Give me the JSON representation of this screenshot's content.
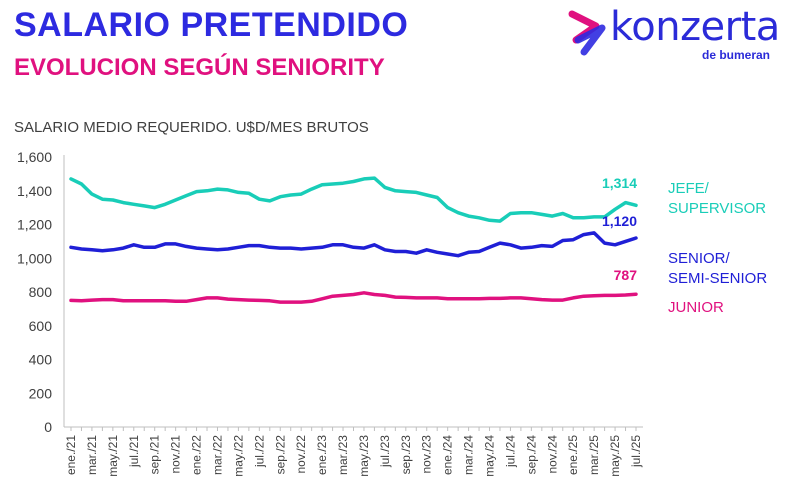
{
  "header": {
    "title": "SALARIO PRETENDIDO",
    "subtitle": "EVOLUCION SEGÚN SENIORITY"
  },
  "logo": {
    "name": "konzerta",
    "tagline": "de bumeran",
    "mark_colors": [
      "#e0117f",
      "#2d2ae0"
    ]
  },
  "chart_data": {
    "type": "line",
    "title": "SALARIO MEDIO REQUERIDO. U$D/MES BRUTOS",
    "xlabel": "",
    "ylabel": "",
    "ylim": [
      0,
      1600
    ],
    "yticks": [
      0,
      200,
      400,
      600,
      800,
      1000,
      1200,
      1400,
      1600
    ],
    "ytick_labels": [
      "0",
      "200",
      "400",
      "600",
      "800",
      "1,000",
      "1,200",
      "1,400",
      "1,600"
    ],
    "grid": false,
    "legend": "right",
    "x": [
      "ene./21",
      "feb./21",
      "mar./21",
      "abr./21",
      "may./21",
      "jun./21",
      "jul./21",
      "ago./21",
      "sep./21",
      "oct./21",
      "nov./21",
      "dic./21",
      "ene./22",
      "feb./22",
      "mar./22",
      "abr./22",
      "may./22",
      "jun./22",
      "jul./22",
      "ago./22",
      "sep./22",
      "oct./22",
      "nov./22",
      "dic./22",
      "ene./23",
      "feb./23",
      "mar./23",
      "abr./23",
      "may./23",
      "jun./23",
      "jul./23",
      "ago./23",
      "sep./23",
      "oct./23",
      "nov./23",
      "dic./23",
      "ene./24",
      "feb./24",
      "mar./24",
      "abr./24",
      "may./24",
      "jun./24",
      "jul./24",
      "ago./24",
      "sep./24",
      "oct./24",
      "nov./24",
      "dic./24",
      "ene./25",
      "feb./25",
      "mar./25",
      "abr./25",
      "may./25",
      "jun./25",
      "jul./25"
    ],
    "tick_labels": [
      "ene./21",
      "mar./21",
      "may./21",
      "jul./21",
      "sep./21",
      "nov./21",
      "ene./22",
      "mar./22",
      "may./22",
      "jul./22",
      "sep./22",
      "nov./22",
      "ene./23",
      "mar./23",
      "may./23",
      "jul./23",
      "sep./23",
      "nov./23",
      "ene./24",
      "mar./24",
      "may./24",
      "jul./24",
      "sep./24",
      "nov./24",
      "ene./25",
      "mar./25",
      "may./25",
      "jul./25"
    ],
    "series": [
      {
        "name": "JEFE/ SUPERVISOR",
        "legend_lines": [
          "JEFE/",
          "SUPERVISOR"
        ],
        "color": "#19cdb8",
        "end_label": "1,314",
        "values": [
          1470,
          1440,
          1380,
          1350,
          1345,
          1330,
          1320,
          1310,
          1300,
          1320,
          1345,
          1370,
          1395,
          1400,
          1410,
          1405,
          1390,
          1385,
          1350,
          1340,
          1365,
          1375,
          1380,
          1410,
          1435,
          1440,
          1445,
          1455,
          1470,
          1475,
          1420,
          1400,
          1395,
          1390,
          1375,
          1360,
          1300,
          1270,
          1250,
          1240,
          1225,
          1220,
          1265,
          1270,
          1270,
          1260,
          1250,
          1265,
          1240,
          1240,
          1245,
          1245,
          1290,
          1330,
          1314
        ]
      },
      {
        "name": "SENIOR/ SEMI-SENIOR",
        "legend_lines": [
          "SENIOR/",
          "SEMI-SENIOR"
        ],
        "color": "#1f1fd6",
        "end_label": "1,120",
        "values": [
          1065,
          1055,
          1050,
          1045,
          1050,
          1060,
          1080,
          1065,
          1065,
          1085,
          1085,
          1070,
          1060,
          1055,
          1050,
          1055,
          1065,
          1075,
          1075,
          1065,
          1060,
          1060,
          1055,
          1060,
          1065,
          1080,
          1080,
          1065,
          1060,
          1080,
          1050,
          1040,
          1040,
          1030,
          1050,
          1035,
          1025,
          1015,
          1035,
          1040,
          1065,
          1090,
          1080,
          1060,
          1065,
          1075,
          1070,
          1105,
          1110,
          1140,
          1150,
          1090,
          1080,
          1100,
          1120
        ]
      },
      {
        "name": "JUNIOR",
        "legend_lines": [
          "JUNIOR"
        ],
        "color": "#e0117f",
        "end_label": "787",
        "values": [
          750,
          748,
          752,
          755,
          755,
          748,
          748,
          748,
          748,
          748,
          745,
          745,
          755,
          765,
          765,
          758,
          755,
          752,
          750,
          748,
          740,
          740,
          740,
          745,
          760,
          775,
          780,
          785,
          795,
          785,
          780,
          770,
          768,
          765,
          765,
          765,
          760,
          760,
          760,
          760,
          762,
          762,
          765,
          765,
          760,
          755,
          752,
          752,
          765,
          775,
          778,
          780,
          780,
          782,
          787
        ]
      }
    ]
  }
}
